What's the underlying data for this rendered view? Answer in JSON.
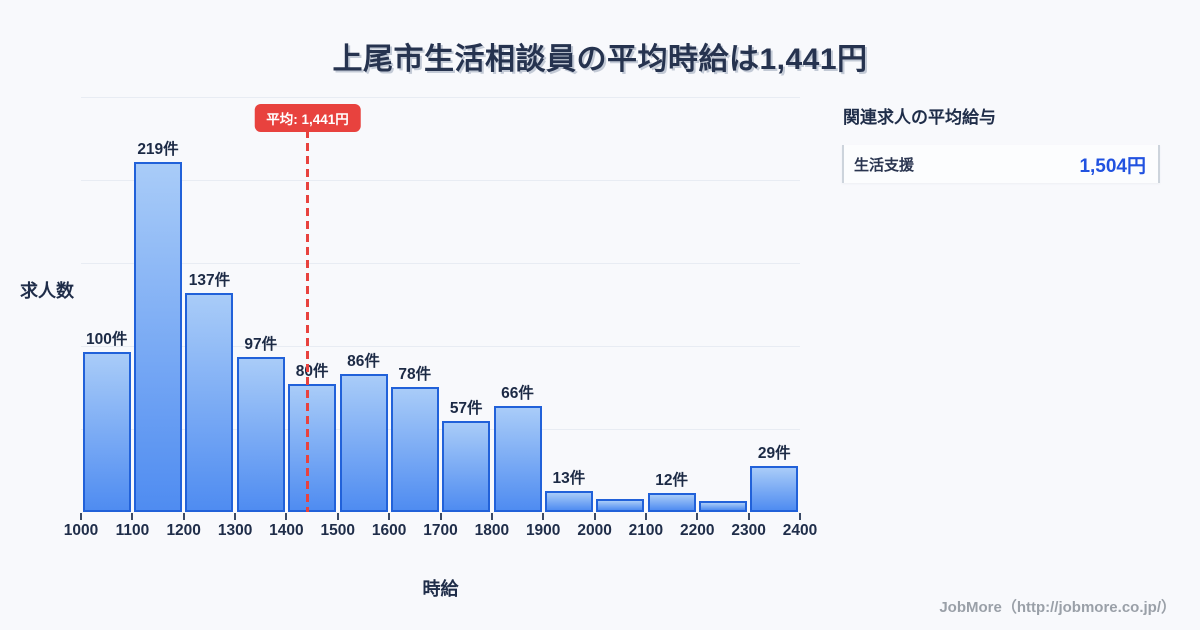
{
  "title": "上尾市生活相談員の平均時給は1,441円",
  "chart_data": {
    "type": "bar",
    "xlabel": "時給",
    "ylabel": "求人数",
    "x_min": 1000,
    "x_max": 2400,
    "bin_width": 100,
    "x_ticks": [
      "1000",
      "1100",
      "1200",
      "1300",
      "1400",
      "1500",
      "1600",
      "1700",
      "1800",
      "1900",
      "2000",
      "2100",
      "2200",
      "2300",
      "2400"
    ],
    "values": [
      100,
      219,
      137,
      97,
      80,
      86,
      78,
      57,
      66,
      13,
      8,
      12,
      7,
      29
    ],
    "bar_labels": [
      "100件",
      "219件",
      "137件",
      "97件",
      "80件",
      "86件",
      "78件",
      "57件",
      "66件",
      "13件",
      "",
      "12件",
      "",
      "29件"
    ],
    "average_value": 1441,
    "average_label": "平均: 1,441円",
    "grid": true,
    "legend": "none"
  },
  "side_panel": {
    "heading": "関連求人の平均給与",
    "rows": [
      {
        "label": "生活支援",
        "value": "1,504円"
      }
    ]
  },
  "footer": {
    "credit": "JobMore（http://jobmore.co.jp/）"
  },
  "colors": {
    "accent_red": "#e8423e",
    "bar_border": "#2161d9",
    "bar_top": "#a9ccf8",
    "bar_bottom": "#4f8cf1",
    "value_blue": "#2152e0",
    "title_navy": "#26334f",
    "background": "#f8f9fc"
  }
}
